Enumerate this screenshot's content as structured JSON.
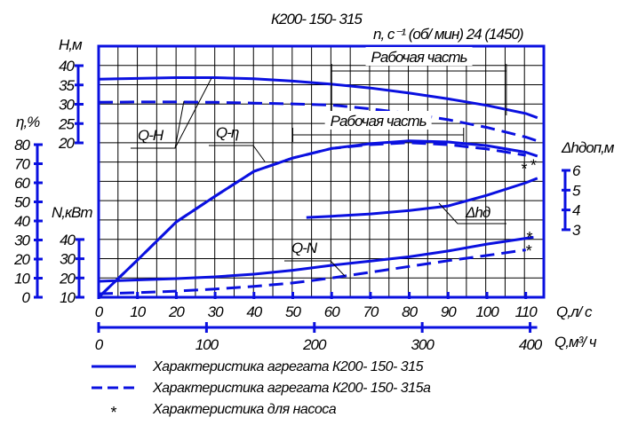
{
  "chart_data": {
    "type": "line",
    "title": "К200- 150- 315",
    "subtitle": "n, c⁻¹ (об/ мин) 24 (1450)",
    "xlabel": "Q,л/ с",
    "x2label": "Q,м³/ ч",
    "x_ticks": [
      0,
      10,
      20,
      30,
      40,
      50,
      60,
      70,
      80,
      90,
      100,
      110
    ],
    "x2_ticks": [
      0,
      100,
      200,
      300,
      400
    ],
    "xlim": [
      0,
      114.5
    ],
    "grid": true,
    "axes": {
      "H": {
        "label": "H,м",
        "ticks": [
          40,
          35,
          30,
          25,
          20
        ],
        "range": [
          20,
          40
        ]
      },
      "eta": {
        "label": "η,%",
        "ticks": [
          80,
          70,
          60,
          50,
          40,
          30,
          20,
          10,
          0
        ],
        "range": [
          0,
          80
        ]
      },
      "N": {
        "label": "N,кВт",
        "ticks": [
          40,
          30,
          20,
          10
        ],
        "range": [
          10,
          40
        ]
      },
      "npsh": {
        "label": "Δhдоп,м",
        "ticks": [
          6,
          5,
          4,
          3
        ],
        "range": [
          3,
          6
        ]
      }
    },
    "series": [
      {
        "name": "Q-H К200-150-315",
        "axis": "H",
        "style": "solid",
        "x": [
          0,
          10,
          20,
          30,
          40,
          50,
          60,
          70,
          80,
          90,
          100,
          110,
          113
        ],
        "y": [
          36.5,
          36.7,
          36.9,
          36.9,
          36.6,
          36,
          35.2,
          34.2,
          32.9,
          31.4,
          29.7,
          27.6,
          26.5
        ]
      },
      {
        "name": "Q-H К200-150-315а",
        "axis": "H",
        "style": "dashed",
        "x": [
          0,
          10,
          20,
          30,
          40,
          50,
          60,
          70,
          80,
          90,
          100,
          110,
          113
        ],
        "y": [
          30.5,
          30.6,
          30.6,
          30.5,
          30.3,
          30.1,
          29.8,
          28.8,
          27.6,
          26,
          24,
          21.5,
          20.5
        ]
      },
      {
        "name": "Q-η К200-150-315",
        "axis": "eta",
        "style": "solid",
        "x": [
          0,
          10,
          20,
          30,
          40,
          50,
          60,
          70,
          80,
          90,
          100,
          110,
          113
        ],
        "y": [
          0,
          19.5,
          39.5,
          53,
          66,
          73,
          78,
          80.5,
          82,
          81.4,
          79.5,
          76,
          74
        ]
      },
      {
        "name": "Q-η К200-150-315а",
        "axis": "eta",
        "style": "dashed",
        "x": [
          0,
          10,
          20,
          30,
          40,
          50,
          60,
          70,
          80,
          90,
          100,
          110
        ],
        "y": [
          0,
          19.5,
          39.5,
          53,
          66,
          73,
          78,
          80,
          81,
          80,
          77.7,
          74.4
        ]
      },
      {
        "name": "Q-N К200-150-315",
        "axis": "N",
        "style": "solid",
        "x": [
          0,
          10,
          20,
          30,
          40,
          50,
          60,
          70,
          80,
          90,
          100,
          110,
          112
        ],
        "y": [
          18.3,
          19,
          19.7,
          20.6,
          22,
          24,
          26.6,
          28.8,
          31,
          34,
          37.6,
          40.6,
          41.2
        ]
      },
      {
        "name": "Q-N К200-150-315а",
        "axis": "N",
        "style": "dashed",
        "x": [
          0,
          10,
          20,
          30,
          40,
          50,
          60,
          70,
          80,
          90,
          100,
          110
        ],
        "y": [
          11.8,
          12.4,
          13.2,
          14.3,
          15.6,
          17.4,
          20,
          23,
          26,
          29,
          31.7,
          34.6
        ]
      },
      {
        "name": "Q-Δhдоп",
        "axis": "npsh",
        "style": "solid",
        "x": [
          53.5,
          60,
          70,
          80,
          90,
          100,
          110,
          113
        ],
        "y": [
          3.62,
          3.68,
          3.8,
          3.97,
          4.2,
          4.74,
          5.37,
          5.6
        ]
      }
    ],
    "pump_points": [
      {
        "axis": "eta",
        "x": 109.6,
        "y": 69
      },
      {
        "axis": "eta",
        "x": 112,
        "y": 71
      },
      {
        "axis": "N",
        "x": 111,
        "y": 42.7
      },
      {
        "axis": "N",
        "x": 110.8,
        "y": 35.8
      }
    ],
    "working_ranges": [
      {
        "label": "Рабочая часть",
        "axis": "H",
        "x": [
          60,
          105
        ]
      },
      {
        "label": "Рабочая часть",
        "axis": "H",
        "x": [
          50,
          94
        ]
      }
    ],
    "annotations": {
      "qh": "Q-H",
      "qeta": "Q-η",
      "qn": "Q-N",
      "npsh": "Δhд"
    },
    "legend": [
      {
        "symbol": "solid",
        "label": "Характеристика агрегата К200- 150- 315"
      },
      {
        "symbol": "dashed",
        "label": "Характеристика агрегата К200- 150- 315а"
      },
      {
        "symbol": "star",
        "label": "Характеристика для насоса"
      }
    ],
    "colors": {
      "curve": "#0a10e0",
      "grid": "#000000"
    }
  }
}
